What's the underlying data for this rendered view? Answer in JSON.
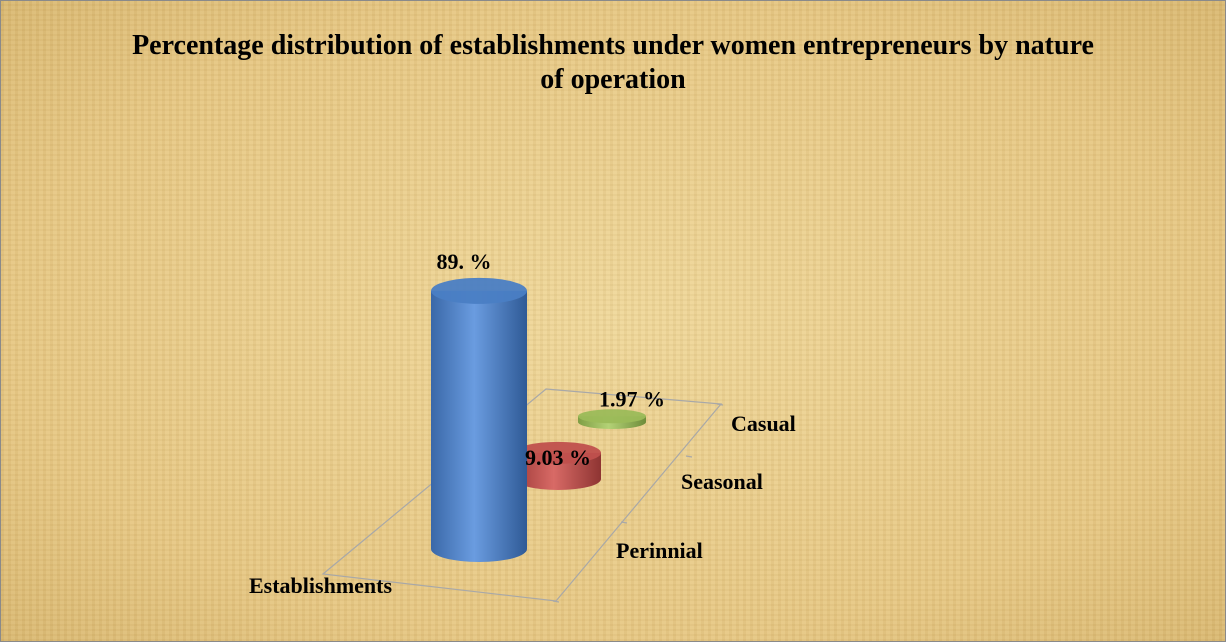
{
  "chart_data": {
    "type": "bar3d",
    "title": "Percentage distribution of establishments under women entrepreneurs by nature of operation",
    "categories": [
      "Perinnial",
      "Seasonal",
      "Casual"
    ],
    "series": [
      {
        "name": "Establishments",
        "color": "#4a7ec4",
        "values": [
          89,
          9.03,
          1.97
        ],
        "value_labels": [
          "89. %",
          "9.03 %",
          "1.97 %"
        ]
      }
    ],
    "colors": [
      "#4a7ec4",
      "#c0504d",
      "#9bbb59"
    ]
  }
}
